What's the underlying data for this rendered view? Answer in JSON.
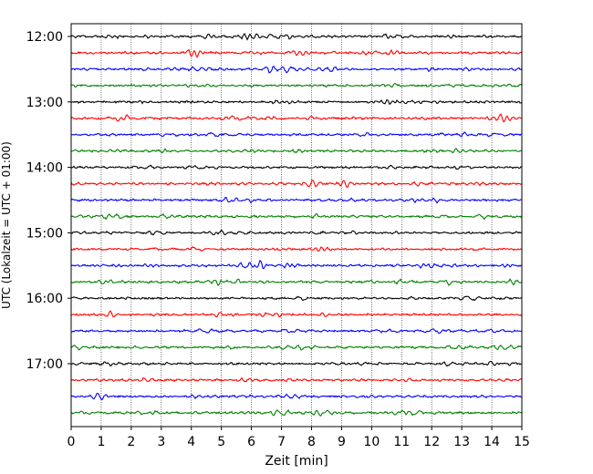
{
  "chart_data": {
    "type": "line",
    "title": "",
    "xlabel": "Zeit  [min]",
    "ylabel": "UTC (Lokalzeit = UTC + 01:00)",
    "xlim": [
      0,
      15
    ],
    "x_ticks": [
      "0",
      "1",
      "2",
      "3",
      "4",
      "5",
      "6",
      "7",
      "8",
      "9",
      "10",
      "11",
      "12",
      "13",
      "14",
      "15"
    ],
    "y_ticks": [
      "12:00",
      "13:00",
      "14:00",
      "15:00",
      "16:00",
      "17:00"
    ],
    "trace_interval_min": 15,
    "trace_start": "12:00",
    "trace_count": 24,
    "trace_colors": [
      "#000000",
      "#ff0000",
      "#0000ff",
      "#008000"
    ],
    "grid": "vertical dotted at each minute",
    "legend": "none"
  }
}
